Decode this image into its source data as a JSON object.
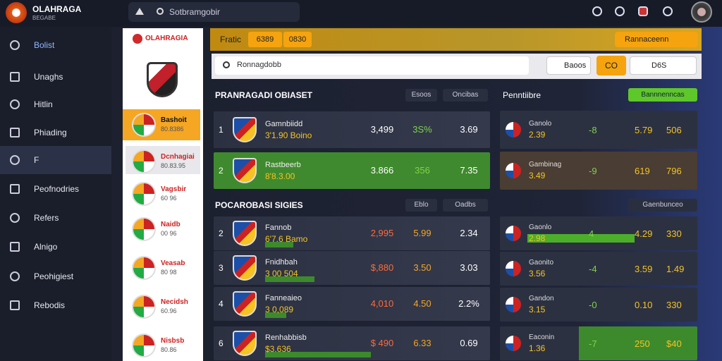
{
  "brand": {
    "name": "OLAHRAGA",
    "tagline": "BEGABE"
  },
  "search_placeholder": "Sotbramgobir",
  "nav": [
    "Bolist",
    "Unaghs",
    "Hitlin",
    "Phiading",
    "F",
    "Peofnodries",
    "Refers",
    "Alnigo",
    "Peohigiest",
    "Rebodis"
  ],
  "league_panel": {
    "title": "OLAHRAGIA",
    "items": [
      {
        "name": "Bashoit",
        "sub": "80.8386"
      },
      {
        "name": "Dcnhagiai",
        "sub": "80.83.95"
      },
      {
        "name": "Vagsbir",
        "sub": "60 96"
      },
      {
        "name": "Naidb",
        "sub": "00 96"
      },
      {
        "name": "Veasab",
        "sub": "80 98"
      },
      {
        "name": "Necidsh",
        "sub": "60.96"
      },
      {
        "name": "Nisbsb",
        "sub": "80.86"
      }
    ]
  },
  "toolbar": {
    "label": "Fratic",
    "tabs": [
      "6389",
      "0830"
    ],
    "action": "Rannaceenn",
    "search": "Ronnagdobb",
    "filter": "Baoos",
    "button": "CO",
    "select": "D6S"
  },
  "sections": [
    {
      "title": "PRANRAGADI OBIASET",
      "controls": [
        "Esoos",
        "Oncibas"
      ],
      "rows": [
        {
          "rank": "1",
          "name": "Gamnbiidd",
          "sub": "3'1.90 Boino",
          "cols": [
            "3,499",
            "3S%",
            "3.69"
          ]
        },
        {
          "rank": "2",
          "name": "Rastbeerb",
          "sub": "8'8.3.00",
          "cols": [
            "3.866",
            "356",
            "7.35"
          ]
        }
      ]
    },
    {
      "title": "POCAROBASI SIGIES",
      "controls": [
        "Eblo",
        "Oadbs"
      ],
      "rows": [
        {
          "rank": "2",
          "name": "Fannob",
          "sub": "6'7.6 Bamo",
          "cols": [
            "2,995",
            "5.99",
            "2.34"
          ]
        },
        {
          "rank": "3",
          "name": "Fnidhbah",
          "sub": "3 00 504",
          "cols": [
            "$,880",
            "3.50",
            "3.03"
          ]
        },
        {
          "rank": "4",
          "name": "Fanneaieo",
          "sub": "3 0,089",
          "cols": [
            "4,010",
            "4.50",
            "2.2%"
          ]
        },
        {
          "rank": "6",
          "name": "Renhabbisb",
          "sub": "$3.636",
          "cols": [
            "$ 490",
            "6.33",
            "0.69"
          ]
        }
      ]
    }
  ],
  "side_sections": [
    {
      "title": "Penntiibre",
      "button": "Bannnenncas",
      "rows": [
        {
          "name": "Ganolo",
          "cols": [
            "2.39",
            "-8",
            "5.79",
            "506"
          ]
        },
        {
          "name": "Gambinag",
          "cols": [
            "3.49",
            "-9",
            "619",
            "796"
          ]
        }
      ]
    },
    {
      "control": "Gaenbunceo",
      "rows": [
        {
          "name": "Gaonlo",
          "cols": [
            "2.98",
            "4",
            "4.29",
            "330"
          ]
        },
        {
          "name": "Gaonito",
          "cols": [
            "3.56",
            "-4",
            "3.59",
            "1.49"
          ]
        },
        {
          "name": "Gandon",
          "cols": [
            "3.15",
            "-0",
            "0.10",
            "330"
          ]
        },
        {
          "name": "Eaconin",
          "cols": [
            "1.36",
            "-7",
            "250",
            "$40"
          ]
        }
      ]
    }
  ]
}
